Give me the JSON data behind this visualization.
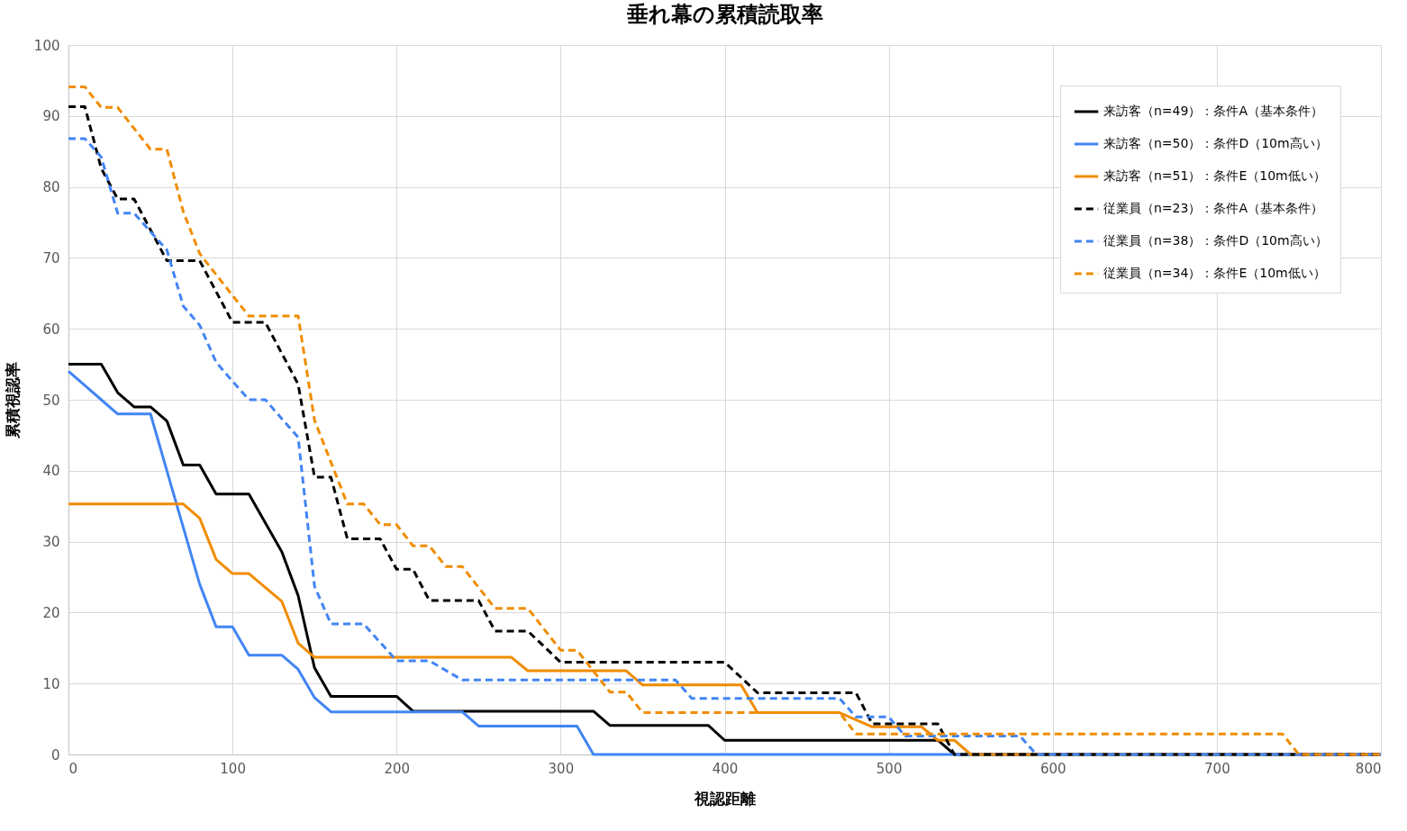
{
  "chart_data": {
    "type": "line",
    "title": "垂れ幕の累積読取率",
    "xlabel": "視認距離",
    "ylabel": "累積視認率",
    "xlim": [
      0,
      800
    ],
    "xticks": [
      0,
      100,
      200,
      300,
      400,
      500,
      600,
      700,
      800
    ],
    "ylim": [
      0,
      100
    ],
    "yticks": [
      0,
      10,
      20,
      30,
      40,
      50,
      60,
      70,
      80,
      90,
      100
    ],
    "grid": true,
    "legend": "top right",
    "marker": "none",
    "series": [
      {
        "name": "来訪客（n=49）：条件A（基本条件）",
        "color": "#000000",
        "line_style": "solid",
        "x": [
          0,
          20,
          30,
          40,
          50,
          60,
          70,
          80,
          90,
          110,
          130,
          140,
          150,
          160,
          200,
          210,
          320,
          330,
          390,
          400,
          530,
          540,
          800
        ],
        "values": [
          55,
          55,
          51,
          49,
          49,
          47,
          40.8,
          40.8,
          36.7,
          36.7,
          28.6,
          22.4,
          12.2,
          8.2,
          8.2,
          6.1,
          6.1,
          4.1,
          4.1,
          2,
          2,
          0,
          0
        ]
      },
      {
        "name": "来訪客（n=50）：条件D（10m高い）",
        "color": "#4285f4",
        "line_style": "solid",
        "x": [
          0,
          10,
          20,
          30,
          50,
          60,
          70,
          80,
          90,
          100,
          110,
          130,
          140,
          150,
          160,
          240,
          250,
          310,
          320,
          800
        ],
        "values": [
          54,
          52,
          50,
          48,
          48,
          40,
          32,
          24,
          18,
          18,
          14,
          14,
          12,
          8,
          6,
          6,
          4,
          4,
          0,
          0
        ]
      },
      {
        "name": "来訪客（n=51）：条件E（10m低い）",
        "color": "#f08c00",
        "line_style": "solid",
        "x": [
          0,
          70,
          80,
          90,
          100,
          110,
          130,
          140,
          150,
          270,
          280,
          340,
          350,
          410,
          420,
          470,
          490,
          520,
          530,
          540,
          550,
          800
        ],
        "values": [
          35.3,
          35.3,
          33.3,
          27.5,
          25.5,
          25.5,
          21.6,
          15.7,
          13.7,
          13.7,
          11.8,
          11.8,
          9.8,
          9.8,
          5.9,
          5.9,
          3.9,
          3.9,
          2,
          2,
          0,
          0
        ]
      },
      {
        "name": "従業員（n=23）：条件A（基本条件）",
        "color": "#000000",
        "line_style": "dashed",
        "x": [
          0,
          10,
          20,
          30,
          40,
          60,
          80,
          100,
          120,
          140,
          150,
          160,
          170,
          190,
          200,
          210,
          220,
          250,
          260,
          280,
          300,
          400,
          420,
          480,
          490,
          530,
          540,
          800
        ],
        "values": [
          91.3,
          91.3,
          82.6,
          78.3,
          78.3,
          69.6,
          69.6,
          60.9,
          60.9,
          52.2,
          39.1,
          39.1,
          30.4,
          30.4,
          26.1,
          26.1,
          21.7,
          21.7,
          17.4,
          17.4,
          13,
          13,
          8.7,
          8.7,
          4.3,
          4.3,
          0,
          0
        ]
      },
      {
        "name": "従業員（n=38）：条件D（10m高い）",
        "color": "#4285f4",
        "line_style": "dashed",
        "x": [
          0,
          10,
          20,
          30,
          40,
          50,
          60,
          70,
          80,
          90,
          100,
          110,
          120,
          140,
          150,
          160,
          180,
          200,
          220,
          240,
          370,
          380,
          470,
          480,
          500,
          510,
          580,
          590,
          800
        ],
        "values": [
          86.8,
          86.8,
          84.2,
          76.3,
          76.3,
          73.7,
          71.1,
          63.2,
          60.5,
          55.3,
          52.6,
          50,
          50,
          44.7,
          23.7,
          18.4,
          18.4,
          13.2,
          13.2,
          10.5,
          10.5,
          7.9,
          7.9,
          5.3,
          5.3,
          2.6,
          2.6,
          0,
          0
        ]
      },
      {
        "name": "従業員（n=34）：条件E（10m低い）",
        "color": "#f08c00",
        "line_style": "dashed",
        "x": [
          0,
          10,
          20,
          30,
          50,
          60,
          70,
          80,
          100,
          110,
          140,
          150,
          160,
          170,
          180,
          190,
          200,
          210,
          220,
          230,
          240,
          260,
          280,
          300,
          310,
          330,
          340,
          350,
          470,
          480,
          740,
          750,
          800
        ],
        "values": [
          94.1,
          94.1,
          91.2,
          91.2,
          85.3,
          85.3,
          76.5,
          70.6,
          64.7,
          61.8,
          61.8,
          47.1,
          41.2,
          35.3,
          35.3,
          32.4,
          32.4,
          29.4,
          29.4,
          26.5,
          26.5,
          20.6,
          20.6,
          14.7,
          14.7,
          8.8,
          8.8,
          5.9,
          5.9,
          2.9,
          2.9,
          0,
          0
        ]
      }
    ]
  }
}
